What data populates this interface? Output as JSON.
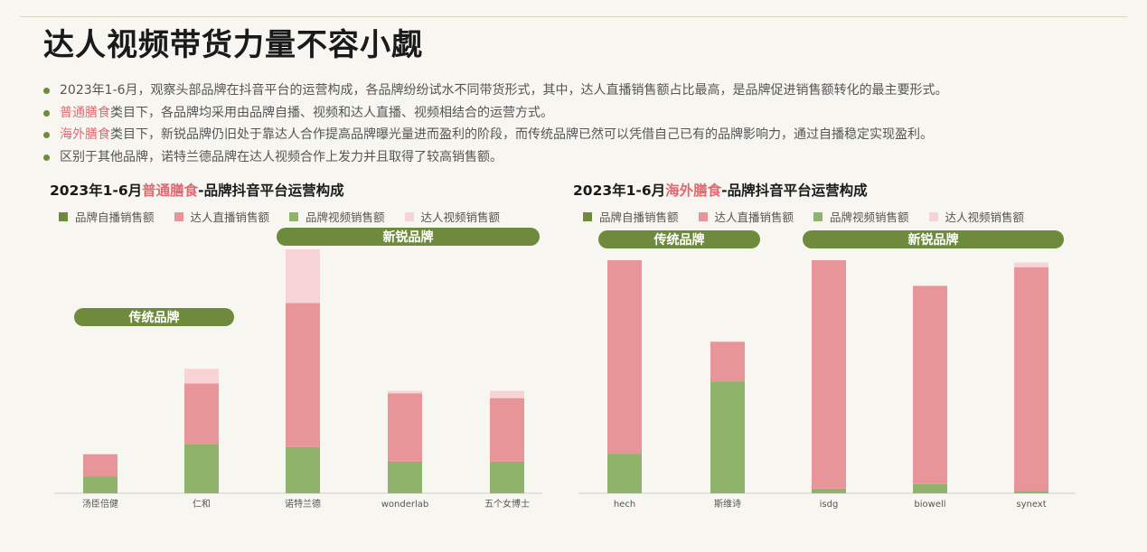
{
  "page": {
    "title": "达人视频带货力量不容小觑",
    "bullets": [
      {
        "parts": [
          {
            "text": "2023年1-6月，观察头部品牌在抖音平台的运营构成，各品牌纷纷试水不同带货形式，其中，达人直播销售额占比最高，是品牌促进销售额转化的最主要形式。",
            "hl": false
          }
        ]
      },
      {
        "parts": [
          {
            "text": "普通膳食",
            "hl": true
          },
          {
            "text": "类目下，各品牌均采用由品牌自播、视频和达人直播、视频相结合的运营方式。",
            "hl": false
          }
        ]
      },
      {
        "parts": [
          {
            "text": "海外膳食",
            "hl": true
          },
          {
            "text": "类目下，新锐品牌仍旧处于靠达人合作提高品牌曝光量进而盈利的阶段，而传统品牌已然可以凭借自己已有的品牌影响力，通过自播稳定实现盈利。",
            "hl": false
          }
        ]
      },
      {
        "parts": [
          {
            "text": "区别于其他品牌，诺特兰德品牌在达人视频合作上发力并且取得了较高销售额。",
            "hl": false
          }
        ]
      }
    ]
  },
  "colors": {
    "brand_live": "#6e8b3d",
    "influencer_live": "#e8959a",
    "brand_video": "#8fb36a",
    "influencer_video": "#f7d3d6",
    "pill": "#6e8b3d"
  },
  "chart_data": [
    {
      "type": "bar",
      "stacked": true,
      "title_parts": [
        {
          "text": "2023年1-6月",
          "hl": false
        },
        {
          "text": "普通膳食",
          "hl": true
        },
        {
          "text": "-品牌抖音平台运营构成",
          "hl": false
        }
      ],
      "legend": [
        "品牌自播销售额",
        "达人直播销售额",
        "品牌视频销售额",
        "达人视频销售额"
      ],
      "categories": [
        "汤臣倍健",
        "仁和",
        "诺特兰德",
        "wonderlab",
        "五个女博士"
      ],
      "series": [
        {
          "name": "品牌自播销售额",
          "color_key": "brand_live",
          "values": [
            0,
            0,
            0,
            0,
            0
          ]
        },
        {
          "name": "品牌视频销售额",
          "color_key": "brand_video",
          "values": [
            7,
            20,
            19,
            13,
            13
          ]
        },
        {
          "name": "达人直播销售额",
          "color_key": "influencer_live",
          "values": [
            9,
            25,
            59,
            28,
            26
          ]
        },
        {
          "name": "达人视频销售额",
          "color_key": "influencer_video",
          "values": [
            0,
            6,
            22,
            1,
            3
          ]
        }
      ],
      "groups": [
        {
          "label": "传统品牌",
          "from": 0,
          "to": 1
        },
        {
          "label": "新锐品牌",
          "from": 2,
          "to": 4
        }
      ],
      "ylim": [
        0,
        100
      ]
    },
    {
      "type": "bar",
      "stacked": true,
      "title_parts": [
        {
          "text": "2023年1-6月",
          "hl": false
        },
        {
          "text": "海外膳食",
          "hl": true
        },
        {
          "text": "-品牌抖音平台运营构成",
          "hl": false
        }
      ],
      "legend": [
        "品牌自播销售额",
        "达人直播销售额",
        "品牌视频销售额",
        "达人视频销售额"
      ],
      "categories": [
        "hech",
        "斯维诗",
        "isdg",
        "biowell",
        "synext"
      ],
      "series": [
        {
          "name": "品牌自播销售额",
          "color_key": "brand_live",
          "values": [
            0,
            0,
            0,
            0,
            0
          ]
        },
        {
          "name": "品牌视频销售额",
          "color_key": "brand_video",
          "values": [
            17,
            48,
            2,
            4,
            1
          ]
        },
        {
          "name": "达人直播销售额",
          "color_key": "influencer_live",
          "values": [
            83,
            17,
            98,
            85,
            96
          ]
        },
        {
          "name": "达人视频销售额",
          "color_key": "influencer_video",
          "values": [
            0,
            0,
            0,
            0,
            2
          ]
        }
      ],
      "groups": [
        {
          "label": "传统品牌",
          "from": 0,
          "to": 1
        },
        {
          "label": "新锐品牌",
          "from": 2,
          "to": 4
        }
      ],
      "ylim": [
        0,
        100
      ]
    }
  ]
}
